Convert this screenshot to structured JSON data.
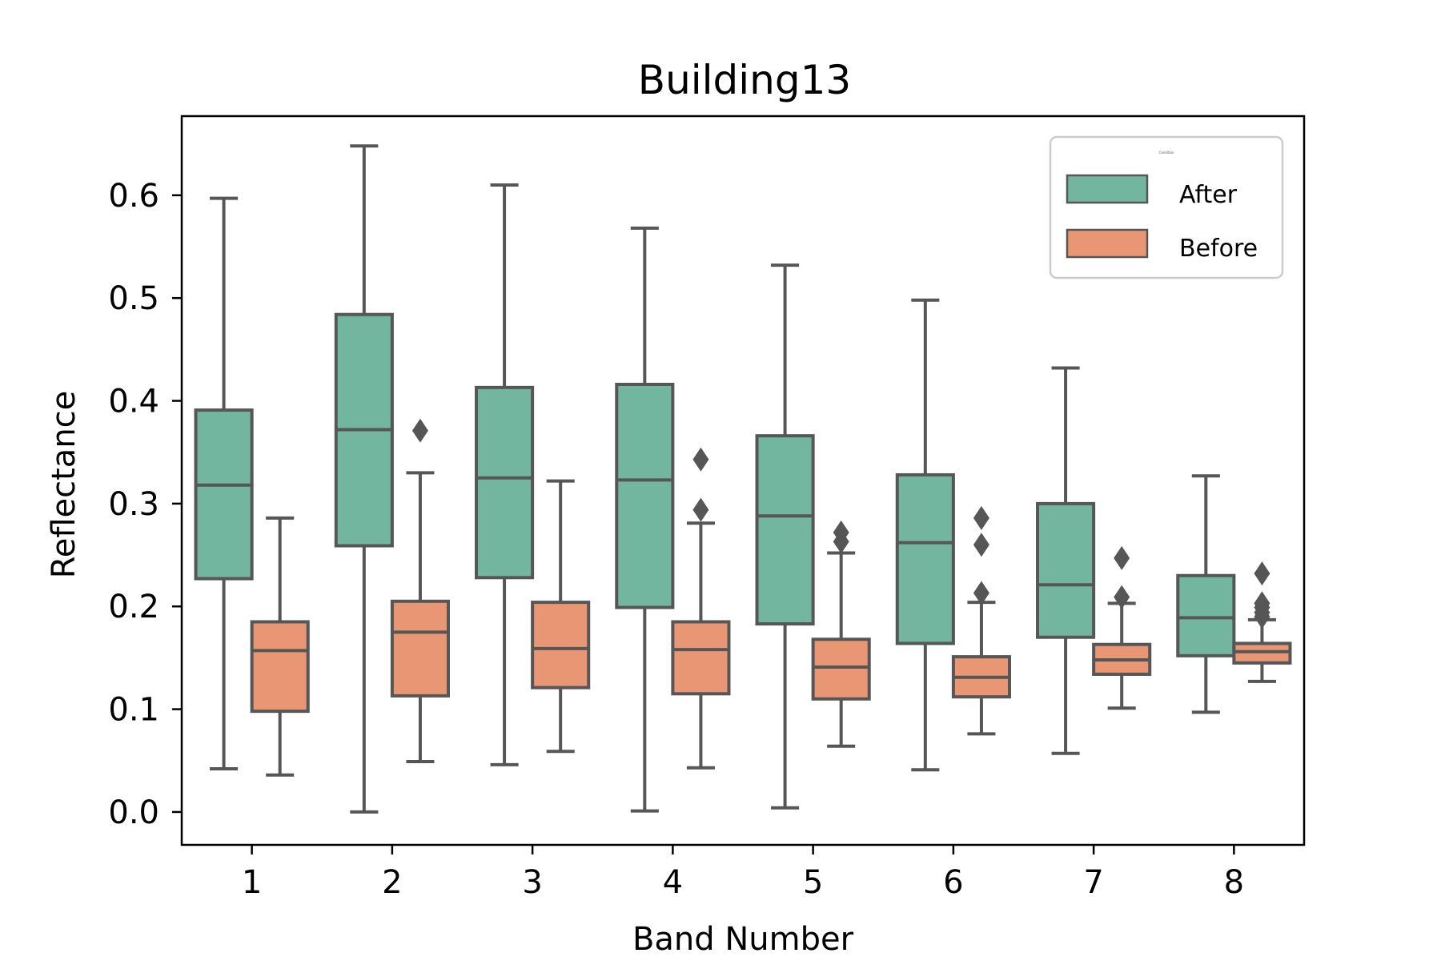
{
  "chart_data": {
    "type": "box",
    "title": "Building13",
    "xlabel": "Band Number",
    "ylabel": "Reflectance",
    "ylim": [
      -0.032,
      0.677
    ],
    "yticks": [
      "0.0",
      "0.1",
      "0.2",
      "0.3",
      "0.4",
      "0.5",
      "0.6"
    ],
    "categories": [
      "1",
      "2",
      "3",
      "4",
      "5",
      "6",
      "7",
      "8"
    ],
    "grid": false,
    "legend": {
      "placement": "top-right",
      "title": "Condition",
      "entries": [
        "After",
        "Before"
      ]
    },
    "colors": {
      "After": "#73b69f",
      "Before": "#e89673",
      "line": "#565656"
    },
    "series": [
      {
        "name": "After",
        "boxes": [
          {
            "whislo": 0.042,
            "q1": 0.227,
            "med": 0.318,
            "q3": 0.391,
            "whishi": 0.597,
            "fliers": []
          },
          {
            "whislo": 0.0,
            "q1": 0.259,
            "med": 0.372,
            "q3": 0.484,
            "whishi": 0.648,
            "fliers": []
          },
          {
            "whislo": 0.046,
            "q1": 0.228,
            "med": 0.325,
            "q3": 0.413,
            "whishi": 0.61,
            "fliers": []
          },
          {
            "whislo": 0.001,
            "q1": 0.199,
            "med": 0.323,
            "q3": 0.416,
            "whishi": 0.568,
            "fliers": []
          },
          {
            "whislo": 0.004,
            "q1": 0.183,
            "med": 0.288,
            "q3": 0.366,
            "whishi": 0.532,
            "fliers": []
          },
          {
            "whislo": 0.041,
            "q1": 0.164,
            "med": 0.262,
            "q3": 0.328,
            "whishi": 0.498,
            "fliers": []
          },
          {
            "whislo": 0.057,
            "q1": 0.17,
            "med": 0.221,
            "q3": 0.3,
            "whishi": 0.432,
            "fliers": []
          },
          {
            "whislo": 0.097,
            "q1": 0.152,
            "med": 0.189,
            "q3": 0.23,
            "whishi": 0.327,
            "fliers": []
          }
        ]
      },
      {
        "name": "Before",
        "boxes": [
          {
            "whislo": 0.036,
            "q1": 0.098,
            "med": 0.157,
            "q3": 0.185,
            "whishi": 0.286,
            "fliers": []
          },
          {
            "whislo": 0.049,
            "q1": 0.113,
            "med": 0.175,
            "q3": 0.205,
            "whishi": 0.33,
            "fliers": [
              0.371
            ]
          },
          {
            "whislo": 0.059,
            "q1": 0.121,
            "med": 0.159,
            "q3": 0.204,
            "whishi": 0.322,
            "fliers": []
          },
          {
            "whislo": 0.043,
            "q1": 0.115,
            "med": 0.158,
            "q3": 0.185,
            "whishi": 0.281,
            "fliers": [
              0.294,
              0.343
            ]
          },
          {
            "whislo": 0.064,
            "q1": 0.11,
            "med": 0.141,
            "q3": 0.168,
            "whishi": 0.252,
            "fliers": [
              0.263,
              0.272
            ]
          },
          {
            "whislo": 0.076,
            "q1": 0.112,
            "med": 0.131,
            "q3": 0.151,
            "whishi": 0.204,
            "fliers": [
              0.213,
              0.26,
              0.286
            ]
          },
          {
            "whislo": 0.101,
            "q1": 0.134,
            "med": 0.148,
            "q3": 0.163,
            "whishi": 0.203,
            "fliers": [
              0.209,
              0.247
            ]
          },
          {
            "whislo": 0.127,
            "q1": 0.145,
            "med": 0.156,
            "q3": 0.164,
            "whishi": 0.187,
            "fliers": [
              0.19,
              0.194,
              0.199,
              0.203,
              0.232
            ]
          }
        ]
      }
    ]
  }
}
